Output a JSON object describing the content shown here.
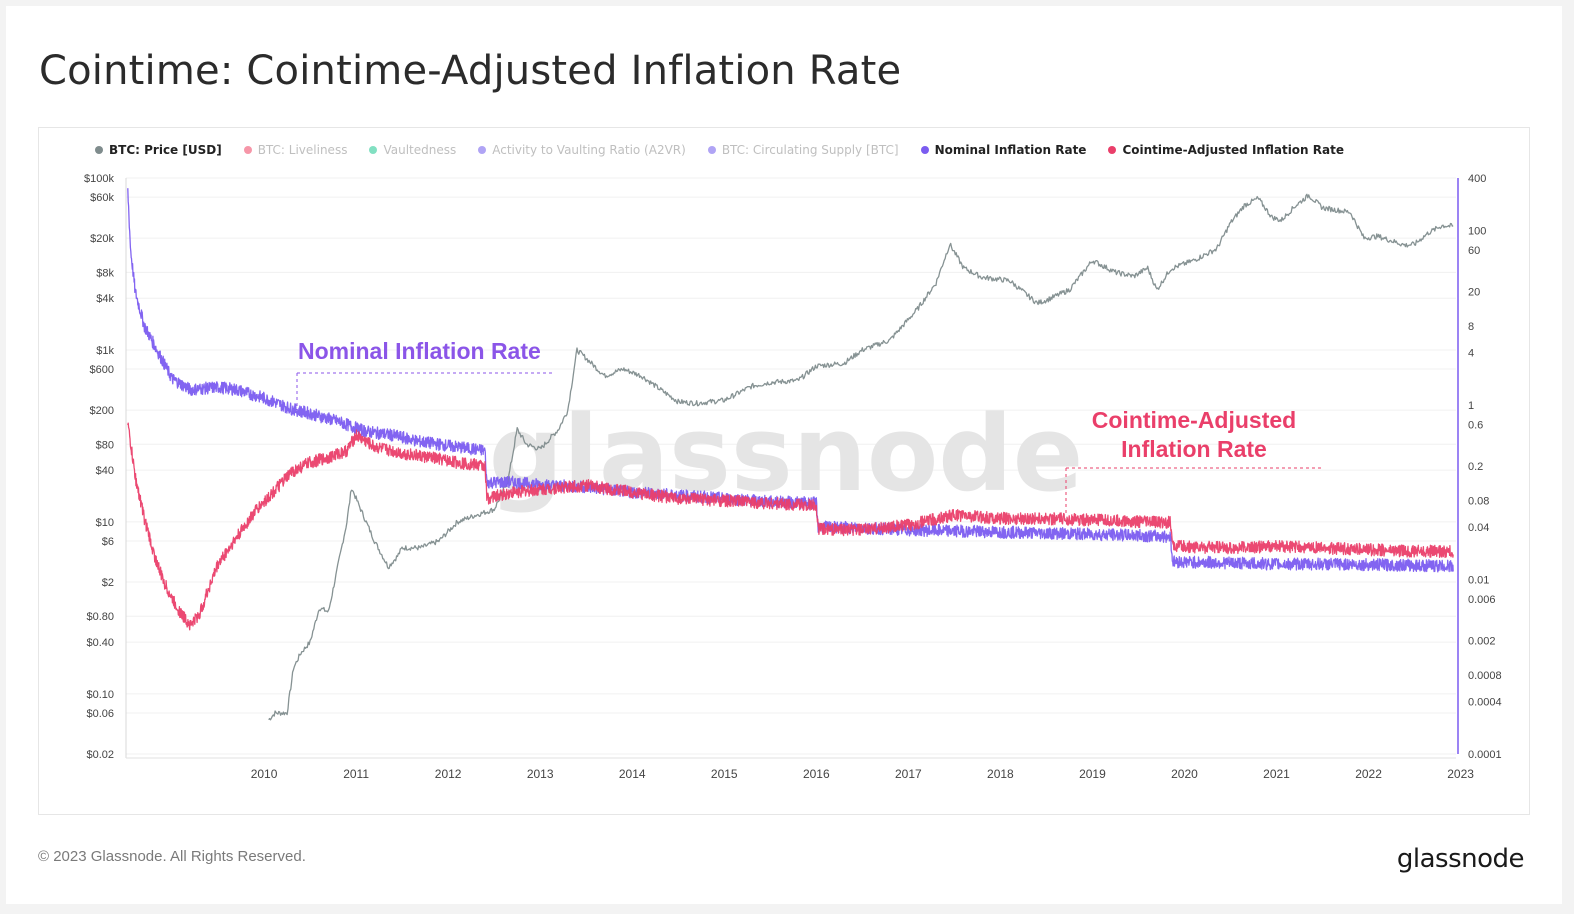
{
  "page": {
    "title": "Cointime: Cointime-Adjusted Inflation Rate",
    "copyright": "© 2023 Glassnode. All Rights Reserved.",
    "brand": "glassnode",
    "watermark": "glassnode"
  },
  "legend": [
    {
      "label": "BTC: Price [USD]",
      "color": "#7f8c8d",
      "active": true
    },
    {
      "label": "BTC: Liveliness",
      "color": "#f0506e",
      "active": false
    },
    {
      "label": "Vaultedness",
      "color": "#2ecc9a",
      "active": false
    },
    {
      "label": "Activity to Vaulting Ratio (A2VR)",
      "color": "#7b68ee",
      "active": false
    },
    {
      "label": "BTC: Circulating Supply [BTC]",
      "color": "#7b68ee",
      "active": false
    },
    {
      "label": "Nominal Inflation Rate",
      "color": "#7b5cf0",
      "active": true
    },
    {
      "label": "Cointime-Adjusted Inflation Rate",
      "color": "#ea3f6a",
      "active": true
    }
  ],
  "annotations": {
    "nominal": "Nominal Inflation Rate",
    "cointime_line1": "Cointime-Adjusted",
    "cointime_line2": "Inflation Rate"
  },
  "chart_data": {
    "type": "line",
    "x_axis": {
      "ticks": [
        "2010",
        "2011",
        "2012",
        "2013",
        "2014",
        "2015",
        "2016",
        "2017",
        "2018",
        "2019",
        "2020",
        "2021",
        "2022",
        "2023"
      ],
      "range": [
        2009.0,
        2023.45
      ]
    },
    "y_left": {
      "scale": "log",
      "range": [
        0.02,
        100000
      ],
      "ticks": [
        {
          "label": "$100k",
          "v": 100000
        },
        {
          "label": "$60k",
          "v": 60000
        },
        {
          "label": "$20k",
          "v": 20000
        },
        {
          "label": "$8k",
          "v": 8000
        },
        {
          "label": "$4k",
          "v": 4000
        },
        {
          "label": "$1k",
          "v": 1000
        },
        {
          "label": "$600",
          "v": 600
        },
        {
          "label": "$200",
          "v": 200
        },
        {
          "label": "$80",
          "v": 80
        },
        {
          "label": "$40",
          "v": 40
        },
        {
          "label": "$10",
          "v": 10
        },
        {
          "label": "$6",
          "v": 6
        },
        {
          "label": "$2",
          "v": 2
        },
        {
          "label": "$0.80",
          "v": 0.8
        },
        {
          "label": "$0.40",
          "v": 0.4
        },
        {
          "label": "$0.10",
          "v": 0.1
        },
        {
          "label": "$0.06",
          "v": 0.06
        },
        {
          "label": "$0.02",
          "v": 0.02
        }
      ]
    },
    "y_right": {
      "scale": "log",
      "range": [
        0.0001,
        400
      ],
      "ticks": [
        {
          "label": "400",
          "v": 400
        },
        {
          "label": "100",
          "v": 100
        },
        {
          "label": "60",
          "v": 60
        },
        {
          "label": "20",
          "v": 20
        },
        {
          "label": "8",
          "v": 8
        },
        {
          "label": "4",
          "v": 4
        },
        {
          "label": "1",
          "v": 1
        },
        {
          "label": "0.6",
          "v": 0.6
        },
        {
          "label": "0.2",
          "v": 0.2
        },
        {
          "label": "0.08",
          "v": 0.08
        },
        {
          "label": "0.04",
          "v": 0.04
        },
        {
          "label": "0.01",
          "v": 0.01
        },
        {
          "label": "0.006",
          "v": 0.006
        },
        {
          "label": "0.002",
          "v": 0.002
        },
        {
          "label": "0.0008",
          "v": 0.0008
        },
        {
          "label": "0.0004",
          "v": 0.0004
        },
        {
          "label": "0.0001",
          "v": 0.0001
        }
      ]
    },
    "series": [
      {
        "name": "BTC: Price [USD]",
        "axis": "left",
        "color": "#7f8c8d",
        "points": [
          [
            2010.55,
            0.05
          ],
          [
            2010.62,
            0.06
          ],
          [
            2010.75,
            0.06
          ],
          [
            2010.82,
            0.2
          ],
          [
            2010.9,
            0.3
          ],
          [
            2011.0,
            0.4
          ],
          [
            2011.1,
            1.0
          ],
          [
            2011.2,
            0.9
          ],
          [
            2011.3,
            3.0
          ],
          [
            2011.4,
            10
          ],
          [
            2011.45,
            25
          ],
          [
            2011.55,
            14
          ],
          [
            2011.7,
            6
          ],
          [
            2011.85,
            3
          ],
          [
            2011.95,
            4
          ],
          [
            2012.0,
            5
          ],
          [
            2012.2,
            5
          ],
          [
            2012.4,
            6
          ],
          [
            2012.6,
            10
          ],
          [
            2012.8,
            12
          ],
          [
            2013.0,
            14
          ],
          [
            2013.15,
            30
          ],
          [
            2013.25,
            120
          ],
          [
            2013.35,
            80
          ],
          [
            2013.5,
            70
          ],
          [
            2013.7,
            120
          ],
          [
            2013.8,
            200
          ],
          [
            2013.9,
            1000
          ],
          [
            2014.0,
            800
          ],
          [
            2014.2,
            500
          ],
          [
            2014.4,
            600
          ],
          [
            2014.6,
            500
          ],
          [
            2014.8,
            350
          ],
          [
            2015.0,
            250
          ],
          [
            2015.2,
            240
          ],
          [
            2015.5,
            260
          ],
          [
            2015.8,
            380
          ],
          [
            2016.0,
            420
          ],
          [
            2016.3,
            440
          ],
          [
            2016.5,
            650
          ],
          [
            2016.8,
            700
          ],
          [
            2017.0,
            1000
          ],
          [
            2017.3,
            1300
          ],
          [
            2017.6,
            3000
          ],
          [
            2017.8,
            6000
          ],
          [
            2017.95,
            17000
          ],
          [
            2018.1,
            9000
          ],
          [
            2018.3,
            7000
          ],
          [
            2018.6,
            6400
          ],
          [
            2018.9,
            3500
          ],
          [
            2019.0,
            3800
          ],
          [
            2019.25,
            5000
          ],
          [
            2019.5,
            11000
          ],
          [
            2019.75,
            8000
          ],
          [
            2019.95,
            7200
          ],
          [
            2020.1,
            9000
          ],
          [
            2020.2,
            5000
          ],
          [
            2020.35,
            8800
          ],
          [
            2020.6,
            11000
          ],
          [
            2020.85,
            15000
          ],
          [
            2021.0,
            30000
          ],
          [
            2021.15,
            48000
          ],
          [
            2021.3,
            58000
          ],
          [
            2021.45,
            35000
          ],
          [
            2021.55,
            32000
          ],
          [
            2021.7,
            47000
          ],
          [
            2021.85,
            63000
          ],
          [
            2022.0,
            45000
          ],
          [
            2022.3,
            40000
          ],
          [
            2022.45,
            20000
          ],
          [
            2022.6,
            21000
          ],
          [
            2022.9,
            16500
          ],
          [
            2023.0,
            17000
          ],
          [
            2023.15,
            23000
          ],
          [
            2023.3,
            28000
          ],
          [
            2023.42,
            27500
          ]
        ]
      },
      {
        "name": "Nominal Inflation Rate",
        "axis": "right",
        "color": "#7b5cf0",
        "points": [
          [
            2009.02,
            280
          ],
          [
            2009.05,
            60
          ],
          [
            2009.1,
            20
          ],
          [
            2009.2,
            8
          ],
          [
            2009.35,
            4
          ],
          [
            2009.5,
            2
          ],
          [
            2009.7,
            1.5
          ],
          [
            2010.0,
            1.6
          ],
          [
            2010.2,
            1.5
          ],
          [
            2010.5,
            1.2
          ],
          [
            2010.8,
            0.9
          ],
          [
            2011.0,
            0.8
          ],
          [
            2011.3,
            0.65
          ],
          [
            2011.6,
            0.5
          ],
          [
            2011.9,
            0.45
          ],
          [
            2012.2,
            0.38
          ],
          [
            2012.6,
            0.33
          ],
          [
            2012.9,
            0.3
          ],
          [
            2012.92,
            0.13
          ],
          [
            2013.2,
            0.13
          ],
          [
            2013.6,
            0.12
          ],
          [
            2014.0,
            0.115
          ],
          [
            2014.5,
            0.1
          ],
          [
            2015.0,
            0.092
          ],
          [
            2015.5,
            0.085
          ],
          [
            2016.0,
            0.078
          ],
          [
            2016.5,
            0.075
          ],
          [
            2016.52,
            0.04
          ],
          [
            2017.0,
            0.039
          ],
          [
            2017.5,
            0.037
          ],
          [
            2018.0,
            0.036
          ],
          [
            2018.5,
            0.035
          ],
          [
            2019.0,
            0.034
          ],
          [
            2019.5,
            0.033
          ],
          [
            2020.0,
            0.032
          ],
          [
            2020.35,
            0.031
          ],
          [
            2020.37,
            0.016
          ],
          [
            2021.0,
            0.0155
          ],
          [
            2021.5,
            0.015
          ],
          [
            2022.0,
            0.015
          ],
          [
            2022.5,
            0.0148
          ],
          [
            2023.0,
            0.0145
          ],
          [
            2023.42,
            0.0142
          ]
        ]
      },
      {
        "name": "Cointime-Adjusted Inflation Rate",
        "axis": "right",
        "color": "#ea3f6a",
        "points": [
          [
            2009.02,
            0.6
          ],
          [
            2009.1,
            0.15
          ],
          [
            2009.2,
            0.05
          ],
          [
            2009.3,
            0.02
          ],
          [
            2009.4,
            0.01
          ],
          [
            2009.5,
            0.006
          ],
          [
            2009.6,
            0.004
          ],
          [
            2009.7,
            0.003
          ],
          [
            2009.8,
            0.004
          ],
          [
            2009.9,
            0.008
          ],
          [
            2010.0,
            0.015
          ],
          [
            2010.2,
            0.03
          ],
          [
            2010.4,
            0.06
          ],
          [
            2010.6,
            0.1
          ],
          [
            2010.8,
            0.17
          ],
          [
            2011.0,
            0.22
          ],
          [
            2011.2,
            0.25
          ],
          [
            2011.4,
            0.3
          ],
          [
            2011.5,
            0.45
          ],
          [
            2011.7,
            0.33
          ],
          [
            2012.0,
            0.28
          ],
          [
            2012.3,
            0.25
          ],
          [
            2012.6,
            0.22
          ],
          [
            2012.9,
            0.2
          ],
          [
            2012.92,
            0.085
          ],
          [
            2013.2,
            0.1
          ],
          [
            2013.6,
            0.11
          ],
          [
            2014.0,
            0.12
          ],
          [
            2014.5,
            0.1
          ],
          [
            2015.0,
            0.085
          ],
          [
            2015.5,
            0.08
          ],
          [
            2016.0,
            0.075
          ],
          [
            2016.5,
            0.07
          ],
          [
            2016.52,
            0.038
          ],
          [
            2017.0,
            0.037
          ],
          [
            2017.5,
            0.042
          ],
          [
            2018.0,
            0.055
          ],
          [
            2018.5,
            0.05
          ],
          [
            2019.0,
            0.05
          ],
          [
            2019.5,
            0.048
          ],
          [
            2020.0,
            0.046
          ],
          [
            2020.35,
            0.045
          ],
          [
            2020.37,
            0.024
          ],
          [
            2021.0,
            0.023
          ],
          [
            2021.5,
            0.024
          ],
          [
            2022.0,
            0.023
          ],
          [
            2022.5,
            0.022
          ],
          [
            2023.0,
            0.021
          ],
          [
            2023.42,
            0.021
          ]
        ]
      }
    ]
  }
}
